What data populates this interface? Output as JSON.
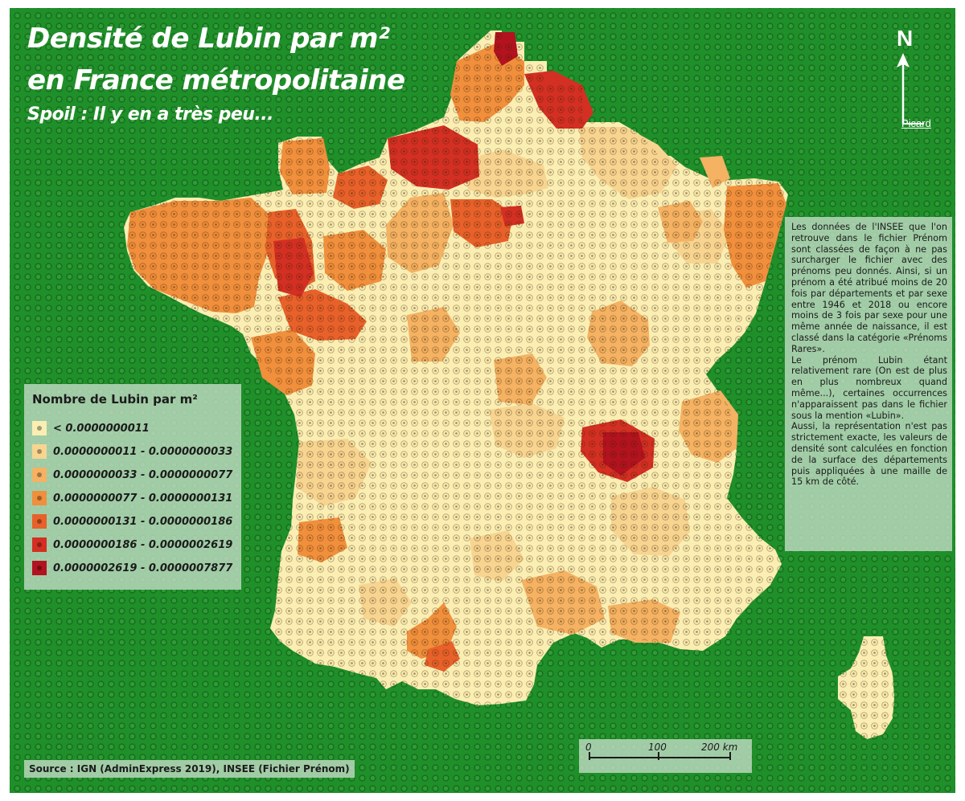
{
  "title": {
    "line1": "Densité de Lubin par m²",
    "line2": "en France métropolitaine",
    "subtitle": "Spoil : Il y en a très peu..."
  },
  "north_arrow": {
    "letter": "N",
    "author": "Picard"
  },
  "legend": {
    "title": "Nombre de Lubin par m²",
    "classes": [
      {
        "label": "< 0.0000000011",
        "color": "#fbeeb3"
      },
      {
        "label": "0.0000000011 - 0.0000000033",
        "color": "#f7d591"
      },
      {
        "label": "0.0000000033 - 0.0000000077",
        "color": "#f4b262"
      },
      {
        "label": "0.0000000077 - 0.0000000131",
        "color": "#f08f3c"
      },
      {
        "label": "0.0000000131 - 0.0000000186",
        "color": "#e8612a"
      },
      {
        "label": "0.0000000186 - 0.0000002619",
        "color": "#d32f23"
      },
      {
        "label": "0.0000002619 - 0.0000007877",
        "color": "#b3121f"
      }
    ]
  },
  "note": {
    "paragraph1": "Les données de l'INSEE que l'on retrouve dans le fichier Prénom sont classées de façon à ne pas surcharger le fichier avec des prénoms peu donnés. Ainsi, si un prénom a été atribué moins de 20 fois par départements et par sexe entre 1946 et 2018 ou encore moins de 3 fois par sexe pour une même année de naissance, il est classé dans la catégorie «Prénoms Rares».",
    "paragraph2": "Le prénom Lubin étant relativement rare (On est de plus en plus nombreux quand même...), certaines occurrences n'apparaissent pas dans le fichier sous la mention «Lubin».",
    "paragraph3": "Aussi, la représentation n'est pas strictement exacte, les valeurs de densité sont calculées en fonction de la surface des départements puis appliquées à une maille de 15 km de côté."
  },
  "source": "Source : IGN (AdminExpress 2019), INSEE (Fichier Prénom)",
  "scale": {
    "labels": [
      "0",
      "100",
      "200 km"
    ]
  },
  "colors": {
    "background": "#1f8f2a",
    "stud_dark": "#17721f"
  }
}
